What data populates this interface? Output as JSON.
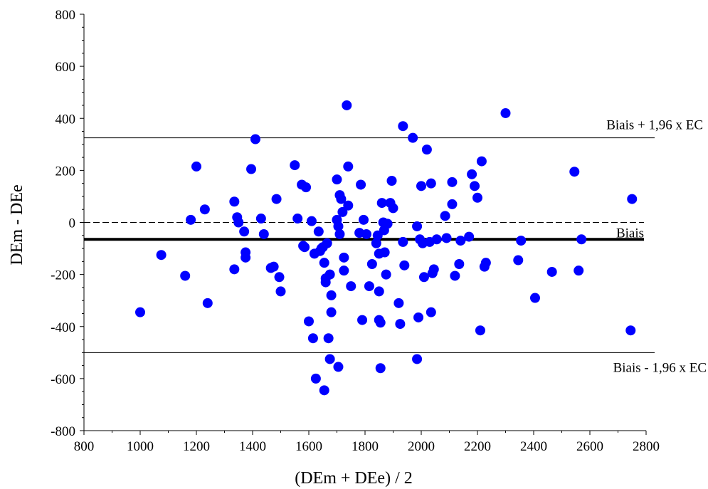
{
  "chart_data": {
    "type": "scatter",
    "xlabel": "(DEm + DEe) / 2",
    "ylabel": "DEm - DEe",
    "xlim": [
      800,
      2800
    ],
    "ylim": [
      -800,
      800
    ],
    "x_ticks": [
      800,
      1000,
      1200,
      1400,
      1600,
      1800,
      2000,
      2200,
      2400,
      2600,
      2800
    ],
    "y_ticks": [
      800,
      600,
      400,
      200,
      0,
      -200,
      -400,
      -600,
      -800
    ],
    "point_color": "#0000ff",
    "reference_lines": [
      {
        "label": "Biais + 1,96 x EC",
        "y": 325,
        "style": "thin"
      },
      {
        "label": "",
        "y": 0,
        "style": "dashed"
      },
      {
        "label": "Biais",
        "y": -65,
        "style": "bold"
      },
      {
        "label": "Biais - 1,96 x EC",
        "y": -500,
        "style": "thin"
      }
    ],
    "points": [
      {
        "x": 1000,
        "y": -345
      },
      {
        "x": 1075,
        "y": -125
      },
      {
        "x": 1160,
        "y": -205
      },
      {
        "x": 1180,
        "y": 10
      },
      {
        "x": 1200,
        "y": 215
      },
      {
        "x": 1230,
        "y": 50
      },
      {
        "x": 1240,
        "y": -310
      },
      {
        "x": 1335,
        "y": 80
      },
      {
        "x": 1335,
        "y": -180
      },
      {
        "x": 1345,
        "y": 20
      },
      {
        "x": 1350,
        "y": 0
      },
      {
        "x": 1370,
        "y": -35
      },
      {
        "x": 1375,
        "y": -115
      },
      {
        "x": 1375,
        "y": -135
      },
      {
        "x": 1395,
        "y": 205
      },
      {
        "x": 1410,
        "y": 320
      },
      {
        "x": 1430,
        "y": 15
      },
      {
        "x": 1440,
        "y": -45
      },
      {
        "x": 1465,
        "y": -175
      },
      {
        "x": 1475,
        "y": -170
      },
      {
        "x": 1485,
        "y": 90
      },
      {
        "x": 1495,
        "y": -210
      },
      {
        "x": 1500,
        "y": -265
      },
      {
        "x": 1550,
        "y": 220
      },
      {
        "x": 1560,
        "y": 15
      },
      {
        "x": 1575,
        "y": 145
      },
      {
        "x": 1580,
        "y": -90
      },
      {
        "x": 1585,
        "y": -95
      },
      {
        "x": 1590,
        "y": 135
      },
      {
        "x": 1600,
        "y": -380
      },
      {
        "x": 1610,
        "y": 5
      },
      {
        "x": 1615,
        "y": -445
      },
      {
        "x": 1620,
        "y": -120
      },
      {
        "x": 1625,
        "y": -600
      },
      {
        "x": 1635,
        "y": -35
      },
      {
        "x": 1640,
        "y": -110
      },
      {
        "x": 1645,
        "y": -100
      },
      {
        "x": 1650,
        "y": -95
      },
      {
        "x": 1655,
        "y": -645
      },
      {
        "x": 1655,
        "y": -155
      },
      {
        "x": 1660,
        "y": -230
      },
      {
        "x": 1660,
        "y": -215
      },
      {
        "x": 1665,
        "y": -80
      },
      {
        "x": 1670,
        "y": -445
      },
      {
        "x": 1675,
        "y": -525
      },
      {
        "x": 1675,
        "y": -200
      },
      {
        "x": 1680,
        "y": -345
      },
      {
        "x": 1680,
        "y": -280
      },
      {
        "x": 1700,
        "y": 10
      },
      {
        "x": 1700,
        "y": 165
      },
      {
        "x": 1705,
        "y": -555
      },
      {
        "x": 1705,
        "y": -15
      },
      {
        "x": 1710,
        "y": -45
      },
      {
        "x": 1710,
        "y": 105
      },
      {
        "x": 1715,
        "y": 90
      },
      {
        "x": 1720,
        "y": 40
      },
      {
        "x": 1725,
        "y": -135
      },
      {
        "x": 1725,
        "y": -185
      },
      {
        "x": 1735,
        "y": 450
      },
      {
        "x": 1740,
        "y": 215
      },
      {
        "x": 1740,
        "y": 65
      },
      {
        "x": 1750,
        "y": -245
      },
      {
        "x": 1780,
        "y": -40
      },
      {
        "x": 1785,
        "y": 145
      },
      {
        "x": 1790,
        "y": -375
      },
      {
        "x": 1795,
        "y": 10
      },
      {
        "x": 1805,
        "y": -45
      },
      {
        "x": 1815,
        "y": -245
      },
      {
        "x": 1825,
        "y": -160
      },
      {
        "x": 1840,
        "y": -80
      },
      {
        "x": 1845,
        "y": -50
      },
      {
        "x": 1850,
        "y": -265
      },
      {
        "x": 1850,
        "y": -375
      },
      {
        "x": 1850,
        "y": -120
      },
      {
        "x": 1855,
        "y": -385
      },
      {
        "x": 1855,
        "y": -560
      },
      {
        "x": 1860,
        "y": 75
      },
      {
        "x": 1865,
        "y": 0
      },
      {
        "x": 1868,
        "y": -30
      },
      {
        "x": 1870,
        "y": -115
      },
      {
        "x": 1875,
        "y": -200
      },
      {
        "x": 1880,
        "y": -5
      },
      {
        "x": 1890,
        "y": 75
      },
      {
        "x": 1895,
        "y": 160
      },
      {
        "x": 1900,
        "y": 55
      },
      {
        "x": 1920,
        "y": -310
      },
      {
        "x": 1925,
        "y": -390
      },
      {
        "x": 1935,
        "y": 370
      },
      {
        "x": 1935,
        "y": -75
      },
      {
        "x": 1940,
        "y": -165
      },
      {
        "x": 1970,
        "y": 325
      },
      {
        "x": 1985,
        "y": -15
      },
      {
        "x": 1985,
        "y": -525
      },
      {
        "x": 1990,
        "y": -365
      },
      {
        "x": 1995,
        "y": -65
      },
      {
        "x": 2000,
        "y": 140
      },
      {
        "x": 2005,
        "y": -80
      },
      {
        "x": 2010,
        "y": -210
      },
      {
        "x": 2020,
        "y": 280
      },
      {
        "x": 2030,
        "y": -75
      },
      {
        "x": 2035,
        "y": 150
      },
      {
        "x": 2035,
        "y": -345
      },
      {
        "x": 2040,
        "y": -195
      },
      {
        "x": 2045,
        "y": -180
      },
      {
        "x": 2055,
        "y": -65
      },
      {
        "x": 2085,
        "y": 25
      },
      {
        "x": 2090,
        "y": -60
      },
      {
        "x": 2110,
        "y": 70
      },
      {
        "x": 2110,
        "y": 155
      },
      {
        "x": 2120,
        "y": -205
      },
      {
        "x": 2135,
        "y": -160
      },
      {
        "x": 2140,
        "y": -70
      },
      {
        "x": 2170,
        "y": -55
      },
      {
        "x": 2180,
        "y": 185
      },
      {
        "x": 2190,
        "y": 140
      },
      {
        "x": 2200,
        "y": 95
      },
      {
        "x": 2210,
        "y": -415
      },
      {
        "x": 2215,
        "y": 235
      },
      {
        "x": 2225,
        "y": -170
      },
      {
        "x": 2230,
        "y": -155
      },
      {
        "x": 2300,
        "y": 420
      },
      {
        "x": 2345,
        "y": -145
      },
      {
        "x": 2355,
        "y": -70
      },
      {
        "x": 2405,
        "y": -290
      },
      {
        "x": 2465,
        "y": -190
      },
      {
        "x": 2545,
        "y": 195
      },
      {
        "x": 2560,
        "y": -185
      },
      {
        "x": 2570,
        "y": -65
      },
      {
        "x": 2745,
        "y": -415
      },
      {
        "x": 2750,
        "y": 90
      }
    ]
  }
}
